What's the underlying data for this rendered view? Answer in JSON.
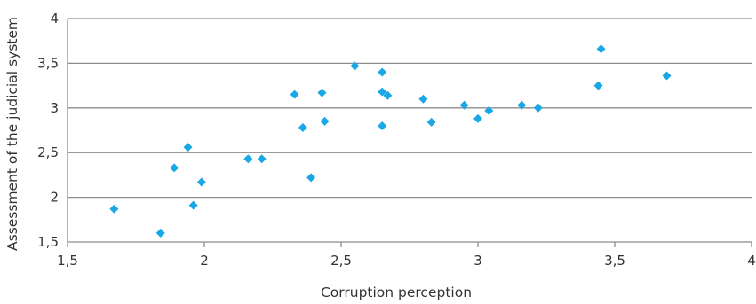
{
  "chart_data": {
    "type": "scatter",
    "title": "",
    "xlabel": "Corruption perception",
    "ylabel": "Assessment of the judicial system",
    "xlim": [
      1.5,
      4
    ],
    "ylim": [
      1.5,
      4
    ],
    "xticks": [
      {
        "value": 1.5,
        "label": "1,5"
      },
      {
        "value": 2,
        "label": "2"
      },
      {
        "value": 2.5,
        "label": "2,5"
      },
      {
        "value": 3,
        "label": "3"
      },
      {
        "value": 3.5,
        "label": "3,5"
      },
      {
        "value": 4,
        "label": "4"
      }
    ],
    "yticks": [
      {
        "value": 1.5,
        "label": "1,5"
      },
      {
        "value": 2,
        "label": "2"
      },
      {
        "value": 2.5,
        "label": "2,5"
      },
      {
        "value": 3,
        "label": "3"
      },
      {
        "value": 3.5,
        "label": "3,5"
      },
      {
        "value": 4,
        "label": "4"
      }
    ],
    "grid": "horizontal",
    "legend": "none",
    "marker": "diamond",
    "color": "#1aa7e6",
    "points": [
      {
        "x": 1.67,
        "y": 1.87
      },
      {
        "x": 1.84,
        "y": 1.6
      },
      {
        "x": 1.89,
        "y": 2.33
      },
      {
        "x": 1.94,
        "y": 2.56
      },
      {
        "x": 1.96,
        "y": 1.91
      },
      {
        "x": 1.99,
        "y": 2.17
      },
      {
        "x": 2.16,
        "y": 2.43
      },
      {
        "x": 2.21,
        "y": 2.43
      },
      {
        "x": 2.33,
        "y": 3.15
      },
      {
        "x": 2.36,
        "y": 2.78
      },
      {
        "x": 2.39,
        "y": 2.22
      },
      {
        "x": 2.43,
        "y": 3.17
      },
      {
        "x": 2.44,
        "y": 2.85
      },
      {
        "x": 2.55,
        "y": 3.47
      },
      {
        "x": 2.65,
        "y": 3.4
      },
      {
        "x": 2.65,
        "y": 3.18
      },
      {
        "x": 2.65,
        "y": 2.8
      },
      {
        "x": 2.67,
        "y": 3.14
      },
      {
        "x": 2.8,
        "y": 3.1
      },
      {
        "x": 2.83,
        "y": 2.84
      },
      {
        "x": 2.95,
        "y": 3.03
      },
      {
        "x": 3.0,
        "y": 2.88
      },
      {
        "x": 3.04,
        "y": 2.97
      },
      {
        "x": 3.16,
        "y": 3.03
      },
      {
        "x": 3.22,
        "y": 3.0
      },
      {
        "x": 3.44,
        "y": 3.25
      },
      {
        "x": 3.45,
        "y": 3.66
      },
      {
        "x": 3.69,
        "y": 3.36
      }
    ]
  }
}
